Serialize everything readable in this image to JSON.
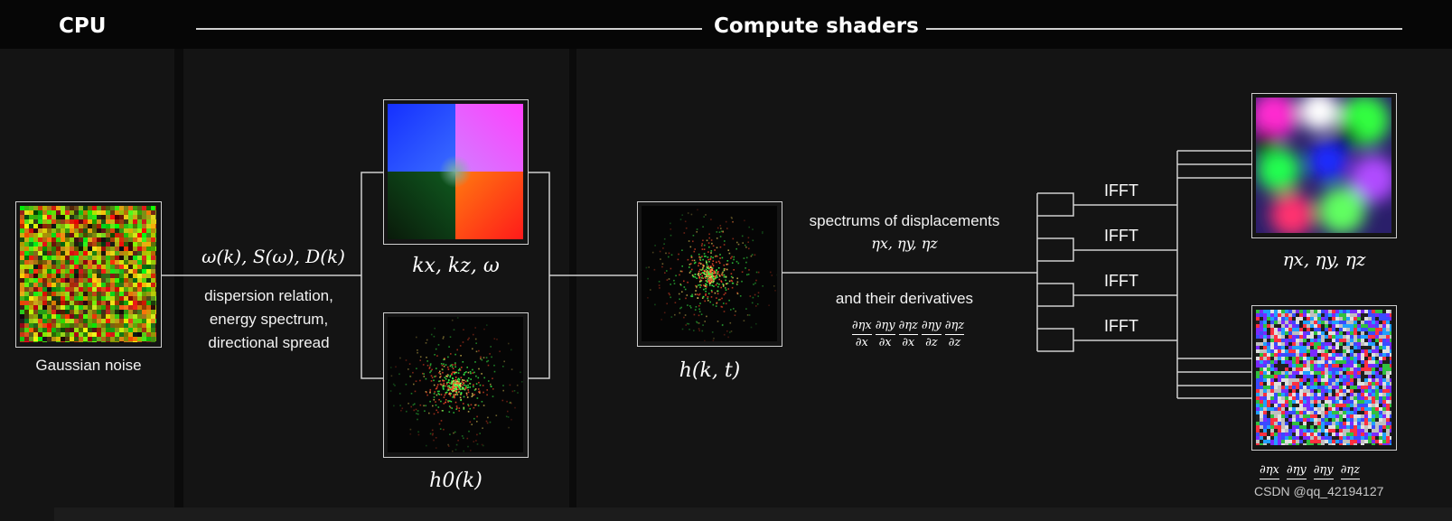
{
  "header": {
    "cpu_label": "CPU",
    "compute_label": "Compute shaders"
  },
  "stages": {
    "noise": {
      "caption": "Gaussian noise"
    },
    "params": {
      "math": "ω(k), S(ω), D(k)",
      "desc_line1": "dispersion relation,",
      "desc_line2": "energy spectrum,",
      "desc_line3": "directional spread"
    },
    "wave_vectors": {
      "math": "kx, kz, ω"
    },
    "initial_spectrum": {
      "math": "h0(k)"
    },
    "time_spectrum": {
      "math": "h(k, t)"
    },
    "spectrums": {
      "line1": "spectrums of displacements",
      "line1_math": "ηx, ηy, ηz",
      "line2": "and their derivatives",
      "deriv_num": [
        "∂ηx",
        "∂ηy",
        "∂ηz",
        "∂ηy",
        "∂ηz"
      ],
      "deriv_den": [
        "∂x",
        "∂x",
        "∂x",
        "∂z",
        "∂z"
      ]
    },
    "ifft_labels": [
      "IFFT",
      "IFFT",
      "IFFT",
      "IFFT"
    ],
    "displacement": {
      "math": "ηx, ηy, ηz"
    },
    "derivatives_out": {
      "num": [
        "∂ηx",
        "∂ηy",
        "∂ηy",
        "∂ηz"
      ]
    }
  },
  "watermark": "CSDN @qq_42194127",
  "colors": {
    "background": "#0b0b0b",
    "panel": "#141414",
    "line": "#cfcfcf",
    "text": "#ffffff"
  }
}
